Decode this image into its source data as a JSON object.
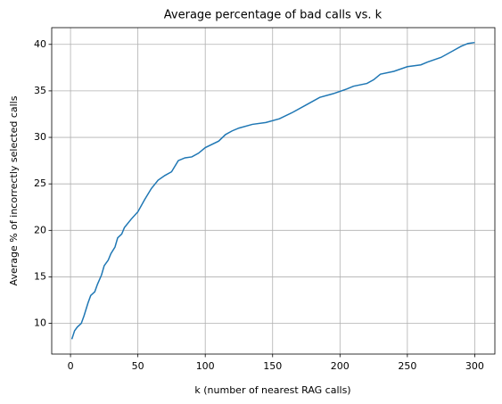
{
  "chart_data": {
    "type": "line",
    "title": "Average percentage of bad calls vs. k",
    "x_label": "k (number of nearest RAG calls)",
    "y_label": "Average % of incorrectly selected calls",
    "x": [
      1,
      3,
      5,
      8,
      10,
      13,
      15,
      18,
      20,
      23,
      25,
      28,
      30,
      33,
      35,
      38,
      40,
      45,
      50,
      55,
      60,
      65,
      70,
      75,
      80,
      85,
      90,
      95,
      100,
      110,
      115,
      120,
      125,
      135,
      145,
      155,
      165,
      175,
      185,
      195,
      205,
      210,
      220,
      225,
      230,
      240,
      250,
      260,
      265,
      275,
      285,
      290,
      295,
      300
    ],
    "series": [
      {
        "name": "Average % of incorrectly selected calls",
        "color": "#1f77b4",
        "values": [
          8.3,
          9.2,
          9.6,
          10.0,
          10.8,
          12.2,
          13.0,
          13.4,
          14.2,
          15.2,
          16.2,
          16.8,
          17.5,
          18.2,
          19.2,
          19.6,
          20.3,
          21.2,
          22.0,
          23.3,
          24.5,
          25.4,
          25.9,
          26.3,
          27.5,
          27.8,
          27.9,
          28.3,
          28.9,
          29.6,
          30.3,
          30.7,
          31.0,
          31.4,
          31.6,
          32.0,
          32.7,
          33.5,
          34.3,
          34.7,
          35.2,
          35.5,
          35.8,
          36.2,
          36.8,
          37.1,
          37.6,
          37.8,
          38.1,
          38.6,
          39.4,
          39.8,
          40.1,
          40.2
        ]
      }
    ],
    "xlim": [
      -13.95,
      314.95
    ],
    "ylim": [
      6.7,
      41.8
    ],
    "xticks": [
      0,
      50,
      100,
      150,
      200,
      250,
      300
    ],
    "yticks": [
      10,
      15,
      20,
      25,
      30,
      35,
      40
    ],
    "grid": true
  }
}
